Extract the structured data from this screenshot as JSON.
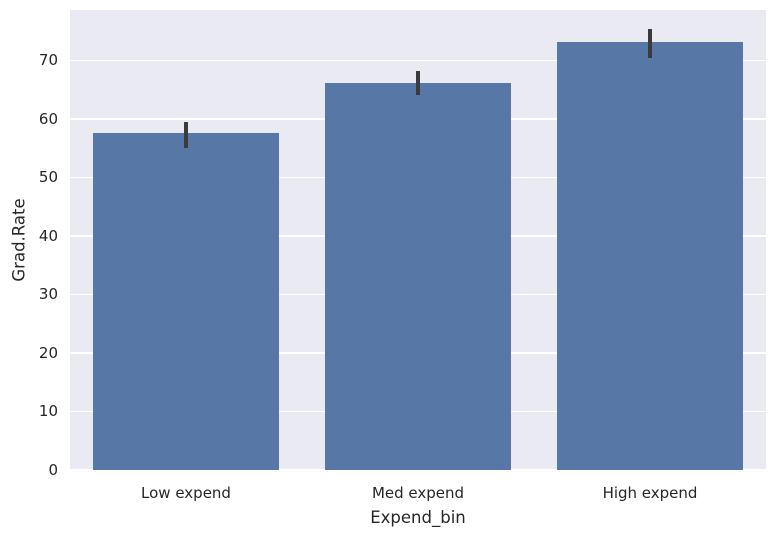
{
  "chart_data": {
    "type": "bar",
    "title": "",
    "xlabel": "Expend_bin",
    "ylabel": "Grad.Rate",
    "categories": [
      "Low expend",
      "Med expend",
      "High expend"
    ],
    "values": [
      57.5,
      66.1,
      73.1
    ],
    "error_bars": [
      [
        55.1,
        59.4
      ],
      [
        64.1,
        68.1
      ],
      [
        70.4,
        75.3
      ]
    ],
    "yticks": [
      0,
      10,
      20,
      30,
      40,
      50,
      60,
      70
    ],
    "ylim": [
      0,
      78.6
    ],
    "grid": true,
    "legend": null,
    "style": {
      "bar_color": "#5777a7",
      "error_color": "#3b3b3b",
      "plot_bg": "#eaeaf2",
      "grid_color": "#ffffff",
      "figure_bg": "#ffffff",
      "text_color": "#262626"
    }
  }
}
